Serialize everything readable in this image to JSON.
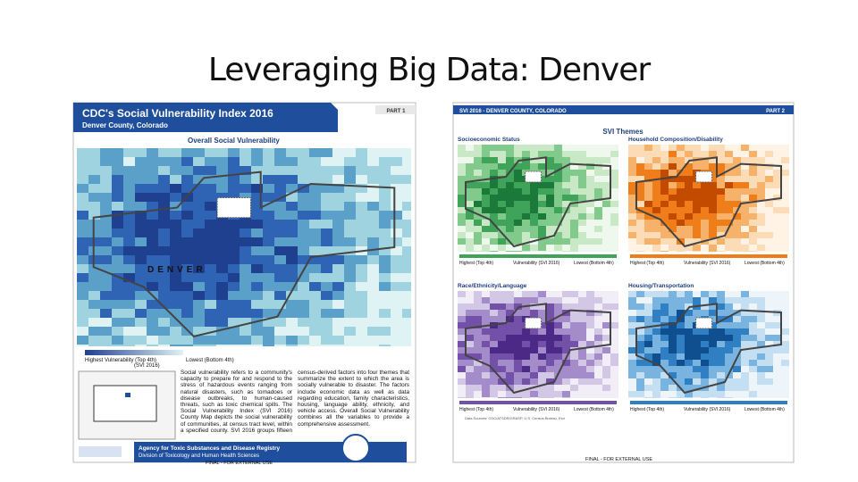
{
  "title": "Leveraging Big Data: Denver",
  "left_panel": {
    "header_title": "CDC's Social Vulnerability Index 2016",
    "header_subtitle": "Denver County, Colorado",
    "part": "PART 1",
    "map_title": "Overall Social Vulnerability",
    "map_label": "DENVER",
    "legend": {
      "high": "Highest Vulnerability (Top 4th)",
      "mid": "(SVI 2016)",
      "low": "Lowest (Bottom 4th)"
    },
    "description": "Social vulnerability refers to a community's capacity to prepare for and respond to the stress of hazardous events ranging from natural disasters, such as tornadoes or disease outbreaks, to human-caused threats, such as toxic chemical spills. The Social Vulnerability Index (SVI 2016) County Map depicts the social vulnerability of communities, at census tract level, within a specified county. SVI 2016 groups fifteen census-derived factors into four themes that summarize the extent to which the area is socially vulnerable to disaster. The factors include economic data as well as data regarding education, family characteristics, housing, language ability, ethnicity, and vehicle access. Overall Social Vulnerability combines all the variables to provide a comprehensive assessment.",
    "footer_agency": "Agency for Toxic Substances and Disease Registry",
    "footer_division": "Division of Toxicology and Human Health Sciences",
    "footer_note": "FINAL - FOR EXTERNAL USE",
    "logo": "ATSDR"
  },
  "right_panel": {
    "header_title": "SVI 2016 - DENVER COUNTY, COLORADO",
    "part": "PART 2",
    "section_title": "SVI Themes",
    "themes": [
      "Socioeconomic Status",
      "Household Composition/Disability",
      "Race/Ethnicity/Language",
      "Housing/Transportation"
    ],
    "legend": {
      "high": "Highest (Top 4th)",
      "mid": "Vulnerability (SVI 2016)",
      "low": "Lowest (Bottom 4th)"
    },
    "footer_note": "FINAL - FOR EXTERNAL USE"
  }
}
